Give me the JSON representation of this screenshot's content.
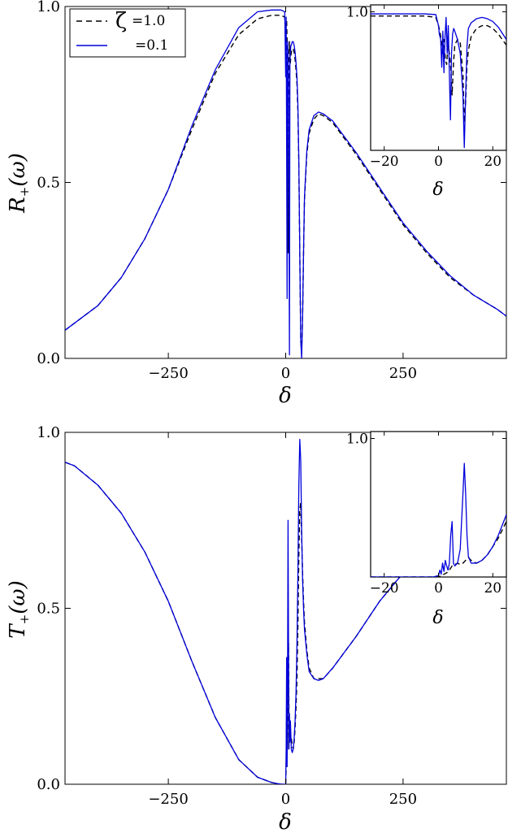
{
  "chart_data": [
    {
      "type": "line",
      "id": "top-main",
      "ylabel_main": "R",
      "ylabel_sub": "+",
      "ylabel_arg": "(ω)",
      "xlabel": "δ",
      "xlim": [
        -470,
        470
      ],
      "ylim": [
        0,
        1.0
      ],
      "xticks": [
        -250,
        0,
        250
      ],
      "xtick_labels": [
        "−250",
        "0",
        "250"
      ],
      "yticks": [
        0,
        0.5,
        1.0
      ],
      "ytick_labels": [
        "0.0",
        "0.5",
        "1.0"
      ],
      "legend": {
        "position": "top-left",
        "symbol": "ζ",
        "entries": [
          {
            "label": "=1.0",
            "style": "dashed",
            "color": "#000000"
          },
          {
            "label": "=0.1",
            "style": "solid",
            "color": "#0000dd"
          }
        ]
      },
      "series": [
        {
          "name": "ζ=1.0",
          "style": "dashed",
          "color": "#000000",
          "x": [
            -470,
            -450,
            -400,
            -350,
            -300,
            -250,
            -200,
            -150,
            -100,
            -60,
            -30,
            -10,
            -2,
            0,
            1,
            2,
            3,
            4,
            5,
            6,
            7,
            8,
            9,
            10,
            11,
            12,
            14,
            16,
            18,
            20,
            22,
            24,
            26,
            28,
            30,
            32,
            34,
            36,
            38,
            40,
            45,
            50,
            60,
            70,
            80,
            100,
            150,
            200,
            250,
            300,
            350,
            400,
            450,
            470
          ],
          "y": [
            0.08,
            0.1,
            0.15,
            0.23,
            0.34,
            0.48,
            0.65,
            0.81,
            0.92,
            0.965,
            0.975,
            0.975,
            0.97,
            0.9,
            0.95,
            0.96,
            0.9,
            0.7,
            0.3,
            0.6,
            0.86,
            0.9,
            0.86,
            0.84,
            0.86,
            0.87,
            0.88,
            0.88,
            0.87,
            0.85,
            0.82,
            0.78,
            0.7,
            0.55,
            0.3,
            0.05,
            0.02,
            0.12,
            0.3,
            0.45,
            0.58,
            0.64,
            0.68,
            0.695,
            0.69,
            0.67,
            0.58,
            0.48,
            0.38,
            0.3,
            0.23,
            0.18,
            0.14,
            0.12
          ]
        },
        {
          "name": "ζ=0.1",
          "style": "solid",
          "color": "#0000dd",
          "x": [
            -470,
            -450,
            -400,
            -350,
            -300,
            -250,
            -200,
            -150,
            -100,
            -60,
            -30,
            -10,
            -2,
            0,
            1,
            2,
            3,
            4,
            5,
            6,
            7,
            8,
            9,
            10,
            11,
            12,
            14,
            16,
            18,
            20,
            22,
            24,
            26,
            28,
            30,
            32,
            34,
            36,
            38,
            40,
            45,
            50,
            60,
            70,
            80,
            100,
            150,
            200,
            250,
            300,
            350,
            400,
            450,
            470
          ],
          "y": [
            0.08,
            0.1,
            0.15,
            0.23,
            0.34,
            0.48,
            0.66,
            0.82,
            0.94,
            0.985,
            0.99,
            0.99,
            0.985,
            0.8,
            0.97,
            0.6,
            0.17,
            0.9,
            0.86,
            0.8,
            0.4,
            0.01,
            0.85,
            0.87,
            0.89,
            0.89,
            0.9,
            0.9,
            0.89,
            0.87,
            0.84,
            0.8,
            0.72,
            0.56,
            0.3,
            0.05,
            0.0,
            0.12,
            0.3,
            0.46,
            0.59,
            0.65,
            0.69,
            0.7,
            0.695,
            0.675,
            0.585,
            0.485,
            0.385,
            0.305,
            0.235,
            0.18,
            0.14,
            0.12
          ]
        }
      ]
    },
    {
      "type": "line",
      "id": "top-inset",
      "xlabel": "δ",
      "xlim": [
        -25,
        25
      ],
      "ylim": [
        0,
        1.05
      ],
      "xticks": [
        -20,
        0,
        20
      ],
      "xtick_labels": [
        "−20",
        "0",
        "20"
      ],
      "yticks": [
        1.0
      ],
      "ytick_labels": [
        "1.0"
      ],
      "series": [
        {
          "name": "ζ=1.0",
          "style": "dashed",
          "color": "#000000",
          "x": [
            -25,
            -15,
            -5,
            -1,
            0,
            0.5,
            1,
            1.5,
            2,
            2.5,
            3,
            3.5,
            4,
            4.5,
            5,
            5.5,
            6,
            7,
            8,
            9,
            9.5,
            10,
            10.5,
            11,
            12,
            14,
            16,
            18,
            20,
            22,
            25
          ],
          "y": [
            0.97,
            0.97,
            0.97,
            0.96,
            0.9,
            0.86,
            0.8,
            0.7,
            0.8,
            0.66,
            0.62,
            0.78,
            0.7,
            0.6,
            0.4,
            0.62,
            0.76,
            0.8,
            0.78,
            0.55,
            0.2,
            0.35,
            0.62,
            0.72,
            0.82,
            0.88,
            0.9,
            0.9,
            0.88,
            0.84,
            0.76
          ]
        },
        {
          "name": "ζ=0.1",
          "style": "solid",
          "color": "#0000dd",
          "x": [
            -25,
            -15,
            -5,
            -1,
            0,
            0.3,
            0.8,
            1.2,
            1.6,
            2.0,
            2.4,
            2.8,
            3.2,
            3.6,
            4.0,
            4.4,
            4.8,
            5.2,
            5.6,
            6.0,
            7.0,
            8.0,
            9.0,
            9.5,
            10.0,
            10.5,
            11.0,
            12.0,
            14.0,
            16.0,
            18.0,
            20.0,
            22.0,
            25.0
          ],
          "y": [
            0.985,
            0.985,
            0.985,
            0.98,
            0.9,
            0.84,
            0.8,
            0.6,
            0.86,
            0.56,
            0.82,
            0.96,
            0.7,
            0.9,
            0.55,
            0.22,
            0.7,
            0.84,
            0.88,
            0.86,
            0.8,
            0.7,
            0.4,
            0.02,
            0.4,
            0.75,
            0.88,
            0.92,
            0.95,
            0.96,
            0.95,
            0.93,
            0.89,
            0.8
          ]
        }
      ]
    },
    {
      "type": "line",
      "id": "bottom-main",
      "ylabel_main": "T",
      "ylabel_sub": "+",
      "ylabel_arg": "(ω)",
      "xlabel": "δ",
      "xlim": [
        -470,
        470
      ],
      "ylim": [
        0,
        1.0
      ],
      "xticks": [
        -250,
        0,
        250
      ],
      "xtick_labels": [
        "−250",
        "0",
        "250"
      ],
      "yticks": [
        0,
        0.5,
        1.0
      ],
      "ytick_labels": [
        "0.0",
        "0.5",
        "1.0"
      ],
      "series": [
        {
          "name": "ζ=1.0",
          "style": "dashed",
          "color": "#000000",
          "x": [
            -470,
            -450,
            -400,
            -350,
            -300,
            -250,
            -200,
            -150,
            -100,
            -60,
            -30,
            -10,
            0,
            1,
            2,
            3,
            4,
            5,
            6,
            7,
            8,
            9,
            10,
            12,
            14,
            16,
            18,
            20,
            22,
            24,
            26,
            28,
            30,
            32,
            34,
            36,
            38,
            40,
            45,
            50,
            60,
            70,
            80,
            100,
            150,
            200,
            250,
            300,
            350,
            400,
            450,
            470
          ],
          "y": [
            0.915,
            0.905,
            0.85,
            0.77,
            0.66,
            0.52,
            0.35,
            0.19,
            0.07,
            0.02,
            0.005,
            0.0,
            0.0,
            0.05,
            0.2,
            0.3,
            0.1,
            0.25,
            0.4,
            0.2,
            0.14,
            0.16,
            0.15,
            0.13,
            0.11,
            0.1,
            0.12,
            0.16,
            0.22,
            0.3,
            0.45,
            0.65,
            0.78,
            0.8,
            0.7,
            0.6,
            0.52,
            0.46,
            0.38,
            0.33,
            0.3,
            0.3,
            0.3,
            0.33,
            0.42,
            0.52,
            0.6,
            0.68,
            0.75,
            0.81,
            0.86,
            0.88
          ]
        },
        {
          "name": "ζ=0.1",
          "style": "solid",
          "color": "#0000dd",
          "x": [
            -470,
            -450,
            -400,
            -350,
            -300,
            -250,
            -200,
            -150,
            -100,
            -60,
            -30,
            -10,
            0,
            1,
            2,
            3,
            4,
            5,
            6,
            7,
            8,
            9,
            10,
            12,
            14,
            16,
            18,
            20,
            22,
            24,
            26,
            28,
            30,
            32,
            34,
            36,
            38,
            40,
            45,
            50,
            60,
            70,
            80,
            100,
            150,
            200,
            250,
            300,
            350,
            400,
            450,
            470
          ],
          "y": [
            0.915,
            0.905,
            0.85,
            0.77,
            0.66,
            0.52,
            0.35,
            0.19,
            0.07,
            0.02,
            0.005,
            0.0,
            0.0,
            0.1,
            0.36,
            0.05,
            0.3,
            0.75,
            0.4,
            0.1,
            0.2,
            0.12,
            0.18,
            0.1,
            0.09,
            0.1,
            0.13,
            0.18,
            0.26,
            0.4,
            0.6,
            0.85,
            0.98,
            0.92,
            0.72,
            0.58,
            0.5,
            0.44,
            0.37,
            0.32,
            0.3,
            0.295,
            0.3,
            0.33,
            0.42,
            0.52,
            0.6,
            0.68,
            0.75,
            0.81,
            0.86,
            0.88
          ]
        }
      ]
    },
    {
      "type": "line",
      "id": "bottom-inset",
      "xlabel": "δ",
      "xlim": [
        -25,
        25
      ],
      "ylim": [
        0,
        1.05
      ],
      "xticks": [
        -20,
        0,
        20
      ],
      "xtick_labels": [
        "−20",
        "0",
        "20"
      ],
      "yticks": [
        1.0
      ],
      "ytick_labels": [
        "1.0"
      ],
      "series": [
        {
          "name": "ζ=1.0",
          "style": "dashed",
          "color": "#000000",
          "x": [
            -25,
            -10,
            -2,
            0,
            1,
            2,
            3,
            4,
            5,
            6,
            7,
            8,
            9,
            10,
            11,
            12,
            14,
            16,
            18,
            20,
            22,
            25
          ],
          "y": [
            0.0,
            0.0,
            0.0,
            0.0,
            0.01,
            0.02,
            0.03,
            0.05,
            0.08,
            0.09,
            0.1,
            0.09,
            0.1,
            0.12,
            0.14,
            0.12,
            0.1,
            0.12,
            0.16,
            0.22,
            0.28,
            0.4
          ]
        },
        {
          "name": "ζ=0.1",
          "style": "solid",
          "color": "#0000dd",
          "x": [
            -25,
            -10,
            -2,
            0,
            0.5,
            1,
            1.5,
            2,
            2.5,
            3,
            3.5,
            4,
            4.5,
            5,
            5.5,
            6,
            7,
            8,
            9,
            9.5,
            10,
            10.5,
            11,
            12,
            14,
            16,
            18,
            20,
            22,
            25
          ],
          "y": [
            0.0,
            0.0,
            0.0,
            0.01,
            0.05,
            0.02,
            0.1,
            0.04,
            0.12,
            0.08,
            0.05,
            0.1,
            0.3,
            0.4,
            0.1,
            0.08,
            0.1,
            0.2,
            0.6,
            0.82,
            0.6,
            0.3,
            0.15,
            0.1,
            0.1,
            0.12,
            0.16,
            0.22,
            0.3,
            0.45
          ]
        }
      ]
    }
  ]
}
